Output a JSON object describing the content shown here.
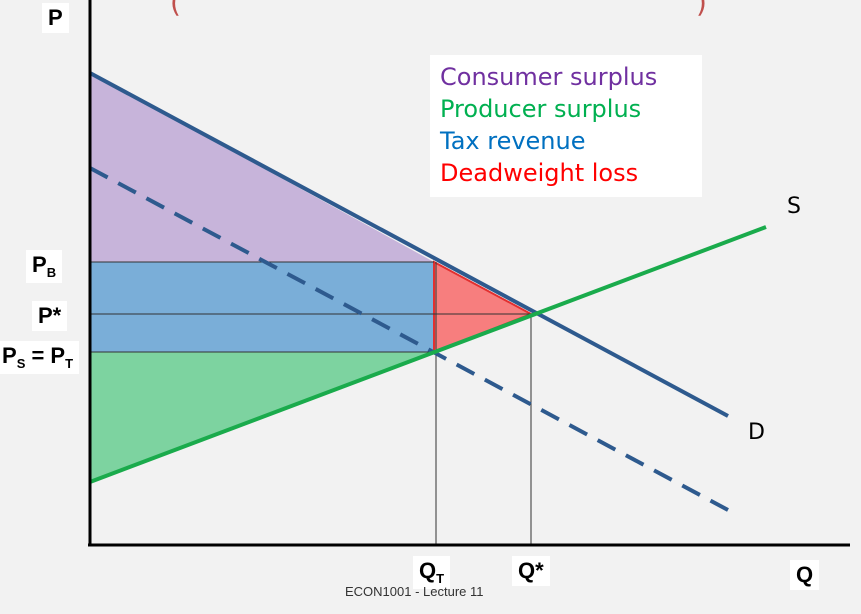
{
  "axes": {
    "y_label": "P",
    "x_label": "Q"
  },
  "price_labels": {
    "pb_main": "P",
    "pb_sub": "B",
    "pstar": "P*",
    "ps_main": "P",
    "ps_sub": "S",
    "ps_eq": " = P",
    "pt_sub": "T"
  },
  "quantity_labels": {
    "qt_main": "Q",
    "qt_sub": "T",
    "qstar": "Q*"
  },
  "curves": {
    "supply": "S",
    "demand": "D"
  },
  "legend": {
    "consumer_surplus": "Consumer surplus",
    "producer_surplus": "Producer surplus",
    "tax_revenue": "Tax revenue",
    "deadweight_loss": "Deadweight loss"
  },
  "colors": {
    "consumer_surplus": "#7030a0",
    "producer_surplus": "#00b050",
    "tax_revenue": "#0070c0",
    "deadweight_loss": "#ff0000",
    "demand_line": "#2e5a8e",
    "supply_line": "#1aab4c"
  },
  "footer": "ECON1001 - Lecture 11"
}
